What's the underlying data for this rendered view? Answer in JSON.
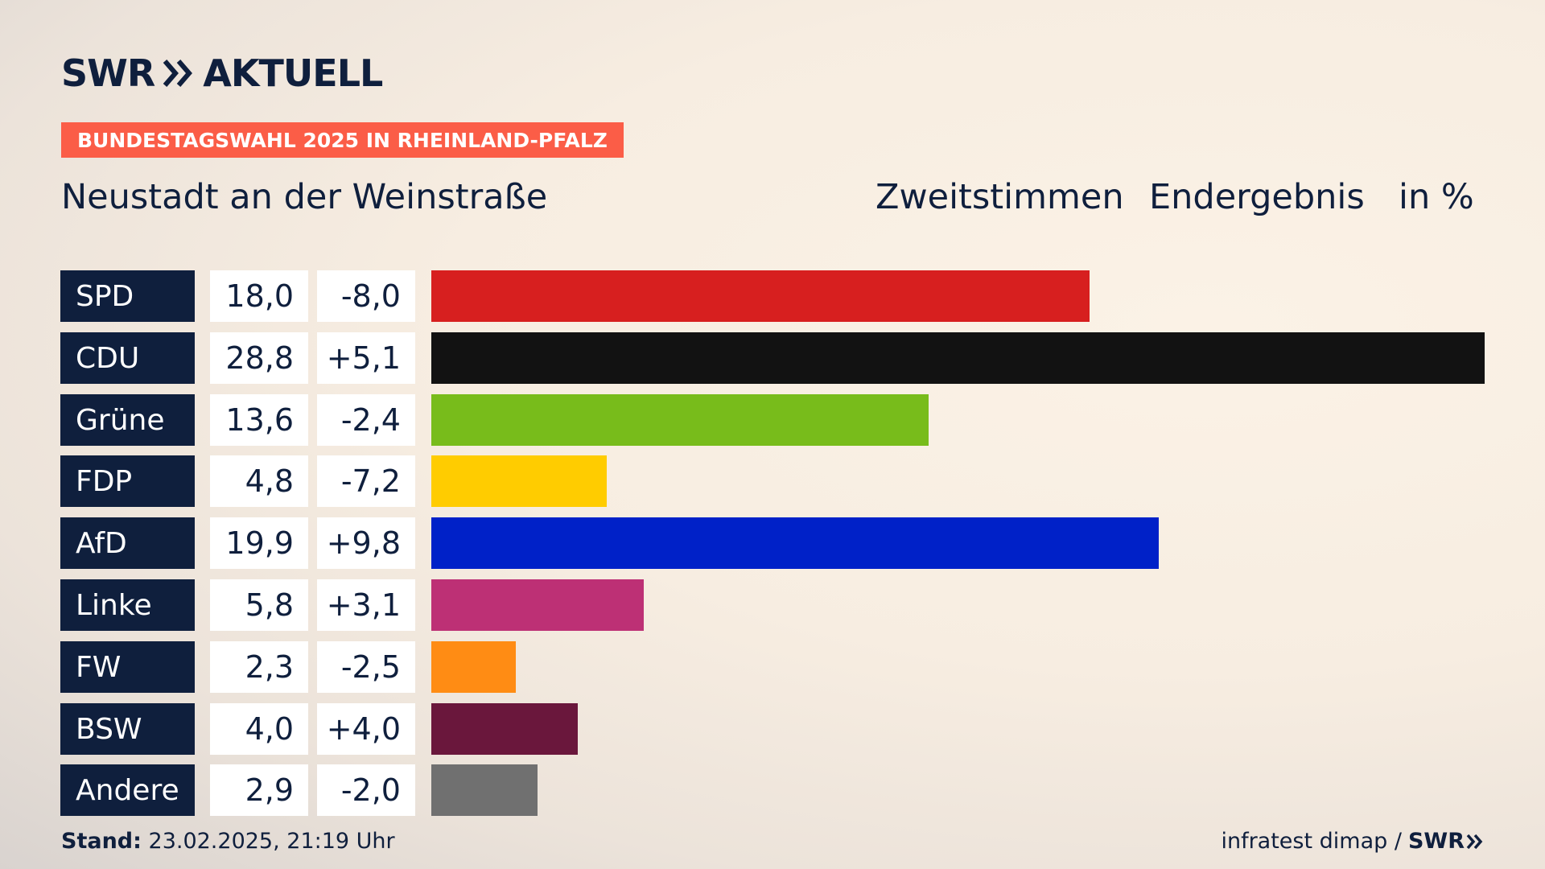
{
  "logo": {
    "brand": "SWR",
    "product": "AKTUELL"
  },
  "tag": "BUNDESTAGSWAHL 2025 IN RHEINLAND-PFALZ",
  "region": "Neustadt an der Weinstraße",
  "header": {
    "vote_type": "Zweitstimmen",
    "status": "Endergebnis",
    "unit": "in %"
  },
  "footer": {
    "stand_label": "Stand:",
    "stand_value": "23.02.2025, 21:19 Uhr",
    "source": "infratest dimap /",
    "source_logo": "SWR"
  },
  "colors": {
    "navy": "#0f1f3d",
    "tag": "#fb5d47",
    "SPD": "#d71f1f",
    "CDU": "#121212",
    "Grüne": "#78bc1b",
    "FDP": "#ffcc00",
    "AfD": "#0021c8",
    "Linke": "#bd3075",
    "FW": "#ff8c14",
    "BSW": "#6a173c",
    "Andere": "#707070"
  },
  "chart_data": {
    "type": "bar",
    "orientation": "horizontal",
    "title": "Neustadt an der Weinstraße",
    "xlabel": "",
    "ylabel": "",
    "unit": "%",
    "xlim": [
      0,
      28.8
    ],
    "grid": false,
    "categories": [
      "SPD",
      "CDU",
      "Grüne",
      "FDP",
      "AfD",
      "Linke",
      "FW",
      "BSW",
      "Andere"
    ],
    "values": [
      18.0,
      28.8,
      13.6,
      4.8,
      19.9,
      5.8,
      2.3,
      4.0,
      2.9
    ],
    "value_labels": [
      "18,0",
      "28,8",
      "13,6",
      "4,8",
      "19,9",
      "5,8",
      "2,3",
      "4,0",
      "2,9"
    ],
    "changes": [
      -8.0,
      5.1,
      -2.4,
      -7.2,
      9.8,
      3.1,
      -2.5,
      4.0,
      -2.0
    ],
    "change_labels": [
      "-8,0",
      "+5,1",
      "-2,4",
      "-7,2",
      "+9,8",
      "+3,1",
      "-2,5",
      "+4,0",
      "-2,0"
    ]
  }
}
